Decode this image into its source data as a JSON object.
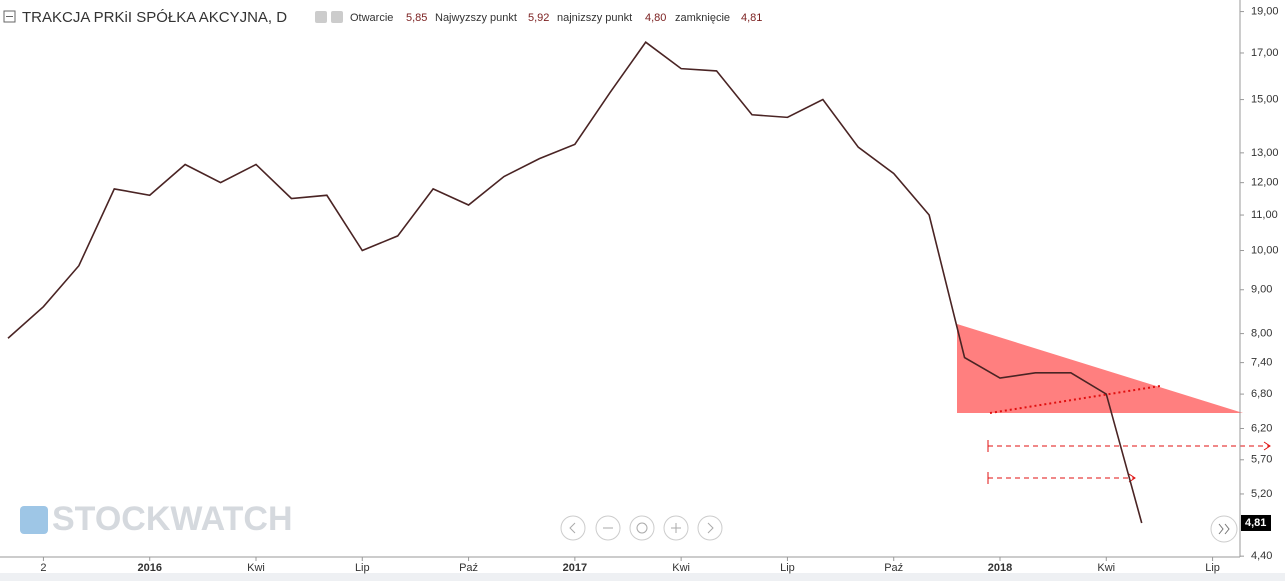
{
  "header": {
    "symbol": "TRAKCJA PRKiI SPÓŁKA AKCYJNA, D",
    "open_label": "Otwarcie",
    "open": "5,85",
    "high_label": "Najwyzszy punkt",
    "high": "5,92",
    "low_label": "najnizszy punkt",
    "low": "4,80",
    "close_label": "zamknięcie",
    "close": "4,81"
  },
  "watermark": "STOCKWATCH",
  "chart_data": {
    "type": "line",
    "log_scale": true,
    "color": "#4a2424",
    "last_price_label": "4,81",
    "x": [
      "2015-09",
      "2015-10",
      "2015-11",
      "2015-12",
      "2016-01",
      "2016-02",
      "2016-03",
      "2016-04",
      "2016-05",
      "2016-06",
      "2016-07",
      "2016-08",
      "2016-09",
      "2016-10",
      "2016-11",
      "2016-12",
      "2017-01",
      "2017-02",
      "2017-03",
      "2017-04",
      "2017-05",
      "2017-06",
      "2017-07",
      "2017-08",
      "2017-09",
      "2017-10",
      "2017-11",
      "2017-12",
      "2018-01",
      "2018-02",
      "2018-03",
      "2018-04",
      "2018-05"
    ],
    "series": [
      {
        "values": [
          7.9,
          8.6,
          9.6,
          11.8,
          11.6,
          12.6,
          12.0,
          12.6,
          11.5,
          11.6,
          10.0,
          10.4,
          11.8,
          11.3,
          12.2,
          12.8,
          13.3,
          15.3,
          17.5,
          16.3,
          16.2,
          14.4,
          14.3,
          15.0,
          13.2,
          12.3,
          11.0,
          7.5,
          7.1,
          7.2,
          7.2,
          6.8,
          4.81
        ]
      }
    ],
    "xlim": [
      "2015-09",
      "2018-08"
    ],
    "xticks": [
      {
        "value": "2015-10",
        "label": "2"
      },
      {
        "value": "2016-01",
        "label": "2016"
      },
      {
        "value": "2016-04",
        "label": "Kwi"
      },
      {
        "value": "2016-07",
        "label": "Lip"
      },
      {
        "value": "2016-10",
        "label": "Paź"
      },
      {
        "value": "2017-01",
        "label": "2017"
      },
      {
        "value": "2017-04",
        "label": "Kwi"
      },
      {
        "value": "2017-07",
        "label": "Lip"
      },
      {
        "value": "2017-10",
        "label": "Paź"
      },
      {
        "value": "2018-01",
        "label": "2018"
      },
      {
        "value": "2018-04",
        "label": "Kwi"
      },
      {
        "value": "2018-07",
        "label": "Lip"
      }
    ],
    "ylim": [
      4.39,
      19.6
    ],
    "yticks": [
      {
        "value": 19,
        "label": "19,00"
      },
      {
        "value": 17,
        "label": "17,00"
      },
      {
        "value": 15,
        "label": "15,00"
      },
      {
        "value": 13,
        "label": "13,00"
      },
      {
        "value": 12,
        "label": "12,00"
      },
      {
        "value": 11,
        "label": "11,00"
      },
      {
        "value": 10,
        "label": "10,00"
      },
      {
        "value": 9,
        "label": "9,00"
      },
      {
        "value": 8,
        "label": "8,00"
      },
      {
        "value": 7.4,
        "label": "7,40"
      },
      {
        "value": 6.8,
        "label": "6,80"
      },
      {
        "value": 6.2,
        "label": "6,20"
      },
      {
        "value": 5.7,
        "label": "5,70"
      },
      {
        "value": 5.2,
        "label": "5,20"
      },
      {
        "value": 4.4,
        "label": "4,40"
      }
    ]
  }
}
